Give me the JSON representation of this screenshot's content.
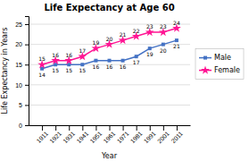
{
  "chart_data": {
    "type": "line",
    "title": "Life Expectancy at Age 60",
    "xlabel": "Year",
    "ylabel": "Life Expectancy in Years",
    "x": [
      1911,
      1921,
      1931,
      1941,
      1951,
      1961,
      1971,
      1981,
      1991,
      2001,
      2011
    ],
    "series": [
      {
        "name": "Male",
        "color": "#4472C4",
        "marker": "square",
        "values": [
          14,
          15,
          15,
          15,
          16,
          16,
          16,
          17,
          19,
          20,
          21
        ]
      },
      {
        "name": "Female",
        "color": "#FF1493",
        "marker": "star",
        "values": [
          15,
          16,
          16,
          17,
          19,
          20,
          21,
          22,
          23,
          23,
          24
        ]
      }
    ],
    "xlim": [
      1901,
      2021
    ],
    "xticks": [
      1911,
      1921,
      1931,
      1941,
      1951,
      1961,
      1971,
      1981,
      1991,
      2001,
      2011
    ],
    "ylim": [
      0,
      27
    ],
    "yticks": [
      0,
      5,
      10,
      15,
      20,
      25
    ],
    "grid": true,
    "legend": "right",
    "data_labels": true
  }
}
